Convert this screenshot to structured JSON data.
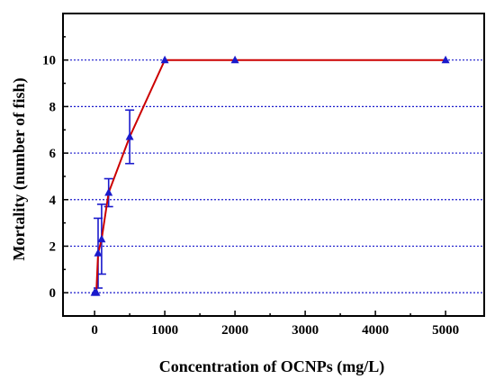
{
  "chart_data": {
    "type": "line",
    "title": "",
    "xlabel": "Concentration of OCNPs (mg/L)",
    "ylabel": "Mortality (number of fish)",
    "xlim": [
      -450,
      5550
    ],
    "ylim": [
      -1,
      12
    ],
    "xticks": [
      0,
      1000,
      2000,
      3000,
      4000,
      5000
    ],
    "yticks": [
      0,
      2,
      4,
      6,
      8,
      10
    ],
    "x_tick_labels": [
      "0",
      "1000",
      "2000",
      "3000",
      "4000",
      "5000"
    ],
    "y_tick_labels": [
      "0",
      "2",
      "4",
      "6",
      "8",
      "10"
    ],
    "grid": "horizontal dotted at y ticks",
    "legend": "none",
    "series": [
      {
        "x": [
          0,
          25,
          50,
          100,
          200,
          500,
          1000,
          2000,
          5000
        ],
        "y": [
          0,
          0,
          1.7,
          2.3,
          4.3,
          6.7,
          10,
          10,
          10
        ],
        "error": [
          0,
          0,
          1.5,
          1.5,
          0.6,
          1.15,
          0,
          0,
          0
        ],
        "line_color": "#cc0000",
        "marker": "triangle",
        "marker_color": "#1a1acc"
      }
    ],
    "colors": {
      "grid": "#1a1acc",
      "error_bar": "#1a1acc"
    }
  }
}
